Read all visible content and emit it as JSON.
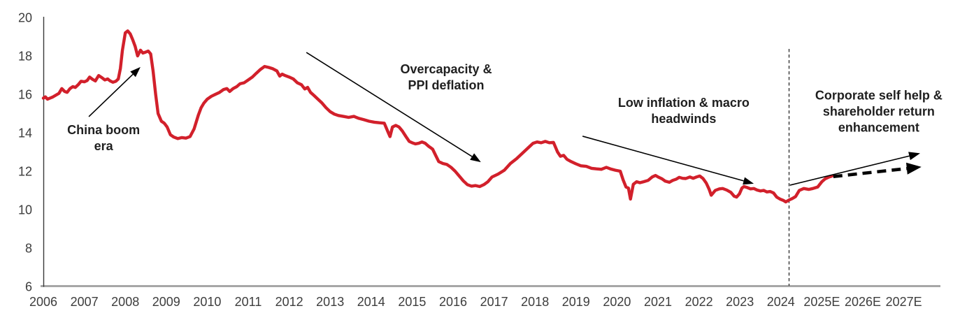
{
  "chart_data": {
    "type": "line",
    "title": "",
    "x_axis": {
      "start_year": 2006,
      "labels": [
        "2006",
        "2007",
        "2008",
        "2009",
        "2010",
        "2011",
        "2012",
        "2013",
        "2014",
        "2015",
        "2016",
        "2017",
        "2018",
        "2019",
        "2020",
        "2021",
        "2022",
        "2023",
        "2024",
        "2025E",
        "2026E",
        "2027E"
      ]
    },
    "y_axis": {
      "ticks": [
        20,
        18,
        16,
        14,
        12,
        10,
        8,
        6
      ],
      "min": 6,
      "max": 20
    },
    "grid": "off",
    "colors": {
      "line": "#d2202b",
      "x_axis_line": "#a6a6a6",
      "y_axis_line": "#3a3a3a",
      "tick_text": "#3d3d3d",
      "annotation_text": "#1f1f1f",
      "arrow": "#000000"
    },
    "forecast_divider": {
      "year": 2024.2,
      "style": "dashed"
    },
    "projection_arrows": [
      {
        "name": "upside-projection-solid",
        "style": "solid-thin",
        "from": [
          2024.22,
          11.27
        ],
        "to": [
          2027.4,
          12.93
        ]
      },
      {
        "name": "base-projection-dashed",
        "style": "dashed-thick",
        "from": [
          2025.28,
          11.72
        ],
        "to": [
          2027.43,
          12.22
        ]
      }
    ],
    "annotations": [
      {
        "id": "china-boom-era",
        "lines": [
          "China boom",
          "era"
        ],
        "center": [
          2007.47,
          13.7
        ],
        "arrow": {
          "from": [
            2007.11,
            14.84
          ],
          "to": [
            2008.37,
            17.42
          ]
        }
      },
      {
        "id": "overcapacity-ppi-deflation",
        "lines": [
          "Overcapacity &",
          "PPI deflation"
        ],
        "center": [
          2015.83,
          16.87
        ],
        "arrow": {
          "from": [
            2012.42,
            18.18
          ],
          "to": [
            2016.68,
            12.47
          ]
        }
      },
      {
        "id": "low-inflation-macro-headwinds",
        "lines": [
          "Low inflation & macro",
          "headwinds"
        ],
        "center": [
          2021.63,
          15.13
        ],
        "arrow": {
          "from": [
            2019.16,
            13.82
          ],
          "to": [
            2023.34,
            11.35
          ]
        }
      },
      {
        "id": "corporate-self-help",
        "lines": [
          "Corporate self help &",
          "shareholder return",
          "enhancement"
        ],
        "center": [
          2026.39,
          15.09
        ],
        "arrow": null
      }
    ],
    "series": [
      {
        "name": "valuation-history",
        "color": "#d2202b",
        "points": [
          [
            2006.0,
            15.8
          ],
          [
            2006.05,
            15.87
          ],
          [
            2006.1,
            15.75
          ],
          [
            2006.16,
            15.8
          ],
          [
            2006.22,
            15.85
          ],
          [
            2006.3,
            15.95
          ],
          [
            2006.38,
            16.05
          ],
          [
            2006.45,
            16.3
          ],
          [
            2006.52,
            16.15
          ],
          [
            2006.58,
            16.1
          ],
          [
            2006.65,
            16.3
          ],
          [
            2006.72,
            16.4
          ],
          [
            2006.78,
            16.36
          ],
          [
            2006.85,
            16.5
          ],
          [
            2006.92,
            16.68
          ],
          [
            2007.0,
            16.65
          ],
          [
            2007.07,
            16.72
          ],
          [
            2007.13,
            16.9
          ],
          [
            2007.2,
            16.78
          ],
          [
            2007.27,
            16.7
          ],
          [
            2007.35,
            16.98
          ],
          [
            2007.42,
            16.88
          ],
          [
            2007.5,
            16.75
          ],
          [
            2007.57,
            16.8
          ],
          [
            2007.63,
            16.7
          ],
          [
            2007.7,
            16.63
          ],
          [
            2007.77,
            16.68
          ],
          [
            2007.83,
            16.8
          ],
          [
            2007.88,
            17.35
          ],
          [
            2007.93,
            18.3
          ],
          [
            2008.0,
            19.2
          ],
          [
            2008.06,
            19.3
          ],
          [
            2008.12,
            19.15
          ],
          [
            2008.18,
            18.85
          ],
          [
            2008.24,
            18.5
          ],
          [
            2008.3,
            18.0
          ],
          [
            2008.37,
            18.3
          ],
          [
            2008.43,
            18.15
          ],
          [
            2008.5,
            18.2
          ],
          [
            2008.56,
            18.25
          ],
          [
            2008.62,
            18.1
          ],
          [
            2008.68,
            17.2
          ],
          [
            2008.74,
            16.0
          ],
          [
            2008.8,
            15.0
          ],
          [
            2008.88,
            14.6
          ],
          [
            2008.95,
            14.5
          ],
          [
            2009.02,
            14.3
          ],
          [
            2009.1,
            13.9
          ],
          [
            2009.18,
            13.78
          ],
          [
            2009.28,
            13.7
          ],
          [
            2009.38,
            13.75
          ],
          [
            2009.48,
            13.72
          ],
          [
            2009.58,
            13.8
          ],
          [
            2009.68,
            14.2
          ],
          [
            2009.78,
            14.9
          ],
          [
            2009.85,
            15.3
          ],
          [
            2009.92,
            15.55
          ],
          [
            2010.0,
            15.75
          ],
          [
            2010.1,
            15.9
          ],
          [
            2010.2,
            16.0
          ],
          [
            2010.3,
            16.1
          ],
          [
            2010.4,
            16.25
          ],
          [
            2010.48,
            16.3
          ],
          [
            2010.55,
            16.15
          ],
          [
            2010.63,
            16.3
          ],
          [
            2010.72,
            16.4
          ],
          [
            2010.8,
            16.55
          ],
          [
            2010.9,
            16.6
          ],
          [
            2011.0,
            16.75
          ],
          [
            2011.1,
            16.9
          ],
          [
            2011.2,
            17.1
          ],
          [
            2011.3,
            17.3
          ],
          [
            2011.4,
            17.45
          ],
          [
            2011.5,
            17.4
          ],
          [
            2011.6,
            17.33
          ],
          [
            2011.7,
            17.22
          ],
          [
            2011.77,
            16.95
          ],
          [
            2011.83,
            17.05
          ],
          [
            2011.9,
            16.98
          ],
          [
            2012.0,
            16.9
          ],
          [
            2012.1,
            16.8
          ],
          [
            2012.2,
            16.6
          ],
          [
            2012.3,
            16.5
          ],
          [
            2012.38,
            16.28
          ],
          [
            2012.45,
            16.36
          ],
          [
            2012.52,
            16.1
          ],
          [
            2012.6,
            15.95
          ],
          [
            2012.7,
            15.75
          ],
          [
            2012.8,
            15.55
          ],
          [
            2012.9,
            15.3
          ],
          [
            2013.0,
            15.1
          ],
          [
            2013.1,
            14.97
          ],
          [
            2013.2,
            14.9
          ],
          [
            2013.32,
            14.85
          ],
          [
            2013.45,
            14.8
          ],
          [
            2013.58,
            14.85
          ],
          [
            2013.7,
            14.75
          ],
          [
            2013.82,
            14.68
          ],
          [
            2013.95,
            14.6
          ],
          [
            2014.08,
            14.55
          ],
          [
            2014.2,
            14.52
          ],
          [
            2014.32,
            14.5
          ],
          [
            2014.42,
            14.0
          ],
          [
            2014.46,
            13.8
          ],
          [
            2014.52,
            14.3
          ],
          [
            2014.6,
            14.38
          ],
          [
            2014.68,
            14.3
          ],
          [
            2014.76,
            14.1
          ],
          [
            2014.85,
            13.8
          ],
          [
            2014.93,
            13.55
          ],
          [
            2015.0,
            13.48
          ],
          [
            2015.08,
            13.42
          ],
          [
            2015.16,
            13.45
          ],
          [
            2015.24,
            13.52
          ],
          [
            2015.32,
            13.45
          ],
          [
            2015.4,
            13.3
          ],
          [
            2015.5,
            13.15
          ],
          [
            2015.58,
            12.8
          ],
          [
            2015.65,
            12.5
          ],
          [
            2015.75,
            12.4
          ],
          [
            2015.85,
            12.35
          ],
          [
            2015.95,
            12.2
          ],
          [
            2016.05,
            12.0
          ],
          [
            2016.15,
            11.75
          ],
          [
            2016.25,
            11.5
          ],
          [
            2016.35,
            11.3
          ],
          [
            2016.45,
            11.22
          ],
          [
            2016.55,
            11.25
          ],
          [
            2016.65,
            11.2
          ],
          [
            2016.75,
            11.3
          ],
          [
            2016.85,
            11.45
          ],
          [
            2016.95,
            11.7
          ],
          [
            2017.1,
            11.85
          ],
          [
            2017.25,
            12.05
          ],
          [
            2017.4,
            12.4
          ],
          [
            2017.55,
            12.65
          ],
          [
            2017.7,
            12.95
          ],
          [
            2017.85,
            13.25
          ],
          [
            2017.95,
            13.45
          ],
          [
            2018.05,
            13.52
          ],
          [
            2018.15,
            13.48
          ],
          [
            2018.25,
            13.55
          ],
          [
            2018.35,
            13.48
          ],
          [
            2018.45,
            13.5
          ],
          [
            2018.55,
            13.0
          ],
          [
            2018.62,
            12.78
          ],
          [
            2018.7,
            12.82
          ],
          [
            2018.78,
            12.62
          ],
          [
            2018.88,
            12.5
          ],
          [
            2019.0,
            12.38
          ],
          [
            2019.12,
            12.28
          ],
          [
            2019.25,
            12.25
          ],
          [
            2019.38,
            12.15
          ],
          [
            2019.5,
            12.12
          ],
          [
            2019.62,
            12.1
          ],
          [
            2019.74,
            12.2
          ],
          [
            2019.84,
            12.12
          ],
          [
            2019.96,
            12.05
          ],
          [
            2020.08,
            12.0
          ],
          [
            2020.15,
            11.55
          ],
          [
            2020.22,
            11.18
          ],
          [
            2020.28,
            11.12
          ],
          [
            2020.33,
            10.55
          ],
          [
            2020.4,
            11.32
          ],
          [
            2020.48,
            11.45
          ],
          [
            2020.56,
            11.4
          ],
          [
            2020.65,
            11.45
          ],
          [
            2020.76,
            11.52
          ],
          [
            2020.86,
            11.7
          ],
          [
            2020.94,
            11.78
          ],
          [
            2021.02,
            11.68
          ],
          [
            2021.1,
            11.6
          ],
          [
            2021.18,
            11.48
          ],
          [
            2021.28,
            11.42
          ],
          [
            2021.36,
            11.52
          ],
          [
            2021.44,
            11.58
          ],
          [
            2021.52,
            11.68
          ],
          [
            2021.6,
            11.63
          ],
          [
            2021.68,
            11.62
          ],
          [
            2021.78,
            11.7
          ],
          [
            2021.86,
            11.63
          ],
          [
            2021.94,
            11.7
          ],
          [
            2022.02,
            11.75
          ],
          [
            2022.1,
            11.62
          ],
          [
            2022.18,
            11.38
          ],
          [
            2022.25,
            11.05
          ],
          [
            2022.3,
            10.75
          ],
          [
            2022.4,
            11.0
          ],
          [
            2022.5,
            11.08
          ],
          [
            2022.58,
            11.1
          ],
          [
            2022.68,
            11.02
          ],
          [
            2022.78,
            10.9
          ],
          [
            2022.86,
            10.7
          ],
          [
            2022.92,
            10.65
          ],
          [
            2022.99,
            10.82
          ],
          [
            2023.05,
            11.12
          ],
          [
            2023.1,
            11.2
          ],
          [
            2023.18,
            11.15
          ],
          [
            2023.26,
            11.08
          ],
          [
            2023.34,
            11.1
          ],
          [
            2023.42,
            11.02
          ],
          [
            2023.5,
            10.97
          ],
          [
            2023.58,
            11.0
          ],
          [
            2023.66,
            10.92
          ],
          [
            2023.74,
            10.94
          ],
          [
            2023.82,
            10.87
          ],
          [
            2023.9,
            10.65
          ],
          [
            2023.98,
            10.55
          ],
          [
            2024.06,
            10.48
          ],
          [
            2024.12,
            10.4
          ],
          [
            2024.2,
            10.5
          ],
          [
            2024.28,
            10.58
          ],
          [
            2024.36,
            10.68
          ],
          [
            2024.45,
            11.0
          ],
          [
            2024.56,
            11.1
          ],
          [
            2024.68,
            11.05
          ],
          [
            2024.78,
            11.1
          ],
          [
            2024.9,
            11.18
          ],
          [
            2025.0,
            11.45
          ],
          [
            2025.08,
            11.6
          ],
          [
            2025.18,
            11.7
          ],
          [
            2025.25,
            11.75
          ]
        ]
      }
    ]
  }
}
